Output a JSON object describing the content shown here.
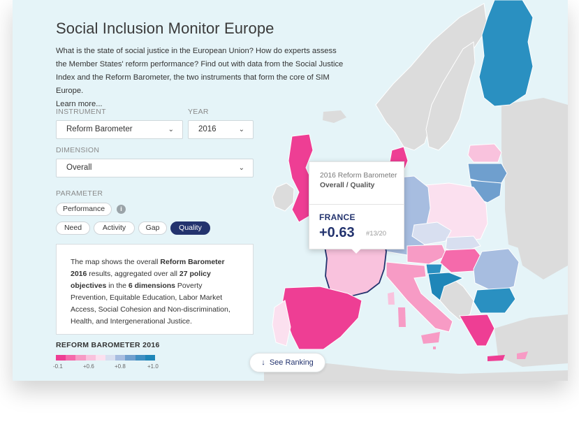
{
  "header": {
    "title": "Social Inclusion Monitor Europe",
    "intro": "What is the state of social justice in the European Union? How do experts assess the Member States' reform performance? Find out with data from the Social Justice Index and the Reform Barometer, the two instruments that form the core of SIM Europe.",
    "learn_more": "Learn more..."
  },
  "filters": {
    "instrument_label": "INSTRUMENT",
    "instrument_value": "Reform Barometer",
    "year_label": "YEAR",
    "year_value": "2016",
    "dimension_label": "DIMENSION",
    "dimension_value": "Overall",
    "parameter_label": "PARAMETER",
    "parameters": [
      "Performance",
      "Need",
      "Activity",
      "Gap",
      "Quality"
    ],
    "active_parameter": "Quality"
  },
  "description": {
    "p1": "The map shows the overall ",
    "b1": "Reform Barometer 2016",
    "p2": " results, aggregated over all ",
    "b2": "27 policy objectives",
    "p3": " in the ",
    "b3": "6 dimensions",
    "p4": " Poverty Prevention, Equitable Education, Labor Market Access, Social Cohesion and Non-discrimination, Health, and Intergenerational Justice."
  },
  "legend": {
    "title": "REFORM BAROMETER 2016",
    "colors": [
      "#ee3e94",
      "#f56aab",
      "#f79bc5",
      "#f9c2dd",
      "#fbe0ef",
      "#d8dff0",
      "#a7bde0",
      "#6f9fce",
      "#3f8fc2",
      "#1f86b8"
    ],
    "ticks": [
      "-0.1",
      "+0.6",
      "+0.8",
      "+1.0"
    ]
  },
  "tooltip": {
    "caption": "2016 Reform Barometer",
    "subcaption": "Overall / Quality",
    "country": "FRANCE",
    "value": "+0.63",
    "rank": "#13/20"
  },
  "ranking_button": {
    "label": "See Ranking",
    "icon": "arrow-down-icon"
  },
  "map": {
    "sea_color": "#e5f4f8",
    "no_data_color": "#dcdcdc",
    "highlight_border": "#23336e"
  }
}
